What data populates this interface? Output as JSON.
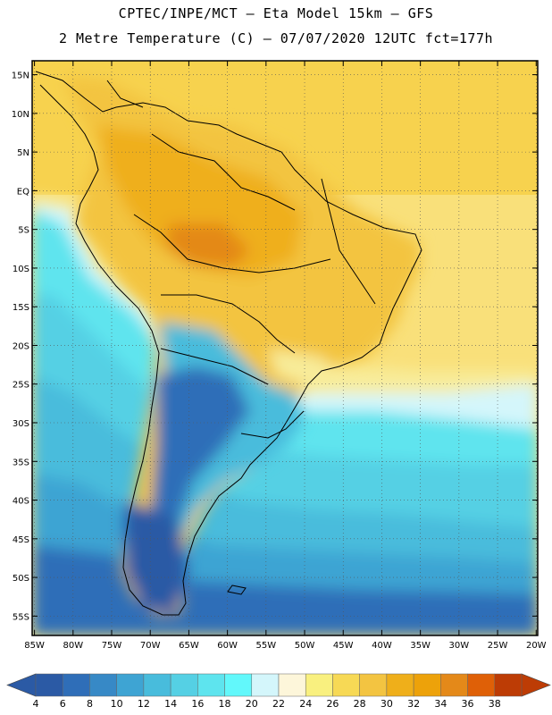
{
  "header": {
    "line1": "CPTEC/INPE/MCT –  Eta Model 15km – GFS",
    "line2": "2 Metre Temperature (C) – 07/07/2020 12UTC fct=177h"
  },
  "map": {
    "lat_labels": [
      "15N",
      "10N",
      "5N",
      "EQ",
      "5S",
      "10S",
      "15S",
      "20S",
      "25S",
      "30S",
      "35S",
      "40S",
      "45S",
      "50S",
      "55S"
    ],
    "lon_labels": [
      "85W",
      "80W",
      "75W",
      "70W",
      "65W",
      "60W",
      "55W",
      "50W",
      "45W",
      "40W",
      "35W",
      "30W",
      "25W",
      "20W"
    ],
    "lat_values": [
      15,
      10,
      5,
      0,
      -5,
      -10,
      -15,
      -20,
      -25,
      -30,
      -35,
      -40,
      -45,
      -50,
      -55
    ],
    "lon_values": [
      -85,
      -80,
      -75,
      -70,
      -65,
      -60,
      -55,
      -50,
      -45,
      -40,
      -35,
      -30,
      -25,
      -20
    ],
    "extent": {
      "lon_min": -85.3,
      "lon_max": -19.8,
      "lat_min": -57.5,
      "lat_max": 16.8
    }
  },
  "colorbar": {
    "unit": "C",
    "labels": [
      "4",
      "6",
      "8",
      "10",
      "12",
      "14",
      "16",
      "18",
      "20",
      "22",
      "24",
      "26",
      "28",
      "30",
      "32",
      "34",
      "36",
      "38"
    ],
    "colors": [
      "#2b5aa5",
      "#2f6eb8",
      "#3789c6",
      "#3ea4d3",
      "#48bcdc",
      "#55d0e4",
      "#5ee4ee",
      "#62f8fb",
      "#d4f6fb",
      "#fdf6da",
      "#f9f07f",
      "#f7d955",
      "#f3c441",
      "#efaf1a",
      "#eda20a",
      "#e48919",
      "#df6007",
      "#bd3c05"
    ],
    "end_low_color": "#2b5aa5",
    "end_high_color": "#bd3c05"
  }
}
